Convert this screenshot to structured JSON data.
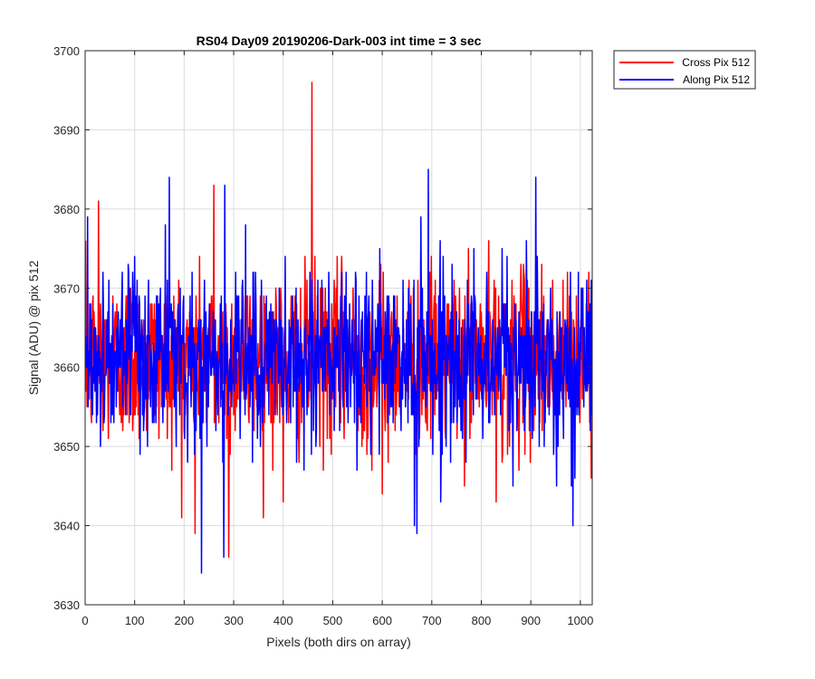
{
  "chart_data": {
    "type": "line",
    "title": "RS04 Day09 20190206-Dark-003 int time = 3 sec",
    "xlabel": "Pixels (both dirs on array)",
    "ylabel": "Signal (ADU) @ pix 512",
    "xlim": [
      0,
      1024
    ],
    "ylim": [
      3630,
      3700
    ],
    "xticks": [
      0,
      100,
      200,
      300,
      400,
      500,
      600,
      700,
      800,
      900,
      1000
    ],
    "yticks": [
      3630,
      3640,
      3650,
      3660,
      3670,
      3680,
      3690,
      3700
    ],
    "grid": true,
    "legend_position": "outside top-right",
    "series": [
      {
        "name": "Cross Pix 512",
        "color": "#ff0000",
        "x_start": 1,
        "x_step": 1,
        "noise_mean": 3661,
        "noise_std": 5.5,
        "noise_seed": 12345,
        "peaks": [
          {
            "x": 27,
            "y": 3681
          },
          {
            "x": 222,
            "y": 3639
          },
          {
            "x": 260,
            "y": 3683
          },
          {
            "x": 290,
            "y": 3636
          },
          {
            "x": 400,
            "y": 3643
          },
          {
            "x": 458,
            "y": 3696
          },
          {
            "x": 600,
            "y": 3644
          },
          {
            "x": 830,
            "y": 3643
          }
        ]
      },
      {
        "name": "Along Pix 512",
        "color": "#0000ff",
        "x_start": 1,
        "x_step": 1,
        "noise_mean": 3661,
        "noise_std": 5.5,
        "noise_seed": 67890,
        "peaks": [
          {
            "x": 5,
            "y": 3679
          },
          {
            "x": 170,
            "y": 3684
          },
          {
            "x": 235,
            "y": 3634
          },
          {
            "x": 280,
            "y": 3636
          },
          {
            "x": 282,
            "y": 3683
          },
          {
            "x": 665,
            "y": 3640
          },
          {
            "x": 670,
            "y": 3639
          },
          {
            "x": 693,
            "y": 3685
          },
          {
            "x": 910,
            "y": 3684
          },
          {
            "x": 985,
            "y": 3640
          }
        ]
      }
    ]
  }
}
